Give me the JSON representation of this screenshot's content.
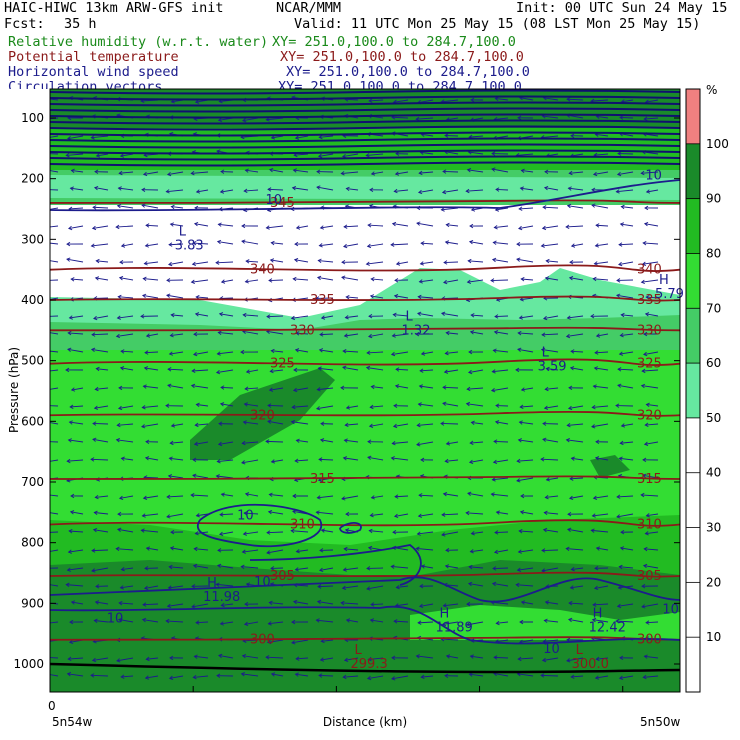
{
  "header": {
    "title_left": "HAIC-HIWC 13km ARW-GFS init",
    "org": "NCAR/MMM",
    "init": "Init: 00 UTC Sun 24 May 15",
    "fcst_label": "Fcst:",
    "fcst_value": "35 h",
    "valid": "Valid: 11 UTC Mon 25 May 15 (08 LST Mon 25 May 15)",
    "fields": [
      {
        "name": "Relative humidity (w.r.t. water)",
        "xy": "XY= 251.0,100.0 to 284.7,100.0",
        "color": "#1a8a1a"
      },
      {
        "name": "Potential temperature",
        "xy": "XY= 251.0,100.0 to 284.7,100.0",
        "color": "#8b1a1a"
      },
      {
        "name": "Horizontal wind speed",
        "xy": "XY= 251.0,100.0 to 284.7,100.0",
        "color": "#1c1c8c"
      },
      {
        "name": "Circulation vectors",
        "xy": "XY= 251.0,100.0 to 284.7,100.0",
        "color": "#1c1c8c"
      }
    ]
  },
  "chart_data": {
    "type": "heatmap",
    "subtype": "vertical cross-section",
    "xlabel": "Distance (km)",
    "ylabel": "Pressure (hPa)",
    "x_tick_zero": "0",
    "x_start_label": "5n54w",
    "x_end_label": "5n50w",
    "y_ticks": [
      100,
      200,
      300,
      400,
      500,
      600,
      700,
      800,
      900,
      1000
    ],
    "ylim": [
      1050,
      50
    ],
    "colorbar": {
      "unit": "%",
      "ticks": [
        10,
        20,
        30,
        40,
        50,
        60,
        70,
        80,
        90,
        100
      ],
      "bands": [
        {
          "from": 50,
          "to": 60,
          "color": "#66e8a0"
        },
        {
          "from": 60,
          "to": 70,
          "color": "#44cc66"
        },
        {
          "from": 70,
          "to": 80,
          "color": "#33dd33"
        },
        {
          "from": 80,
          "to": 90,
          "color": "#22bb22"
        },
        {
          "from": 90,
          "to": 100,
          "color": "#1a8a2a"
        },
        {
          "from": 100,
          "to": 110,
          "color": "#f08080"
        }
      ]
    },
    "theta_contours": [
      {
        "label": "300",
        "p": 960
      },
      {
        "label": "305",
        "p": 855
      },
      {
        "label": "310",
        "p": 770
      },
      {
        "label": "315",
        "p": 695
      },
      {
        "label": "320",
        "p": 590
      },
      {
        "label": "325",
        "p": 505
      },
      {
        "label": "330",
        "p": 450
      },
      {
        "label": "335",
        "p": 400
      },
      {
        "label": "340",
        "p": 350
      },
      {
        "label": "345",
        "p": 240
      }
    ],
    "extrema": [
      {
        "type": "L",
        "value": "3.83",
        "x": 0.22,
        "p": 300,
        "color": "#1c1c8c"
      },
      {
        "type": "L",
        "value": "1.32",
        "x": 0.62,
        "p": 440,
        "color": "#1c1c8c"
      },
      {
        "type": "L",
        "value": "3.59",
        "x": 0.86,
        "p": 500,
        "color": "#1c1c8c"
      },
      {
        "type": "H",
        "value": "5.79",
        "x": 1.07,
        "p": 380,
        "color": "#1c1c8c"
      },
      {
        "type": "H",
        "value": "11.98",
        "x": 0.27,
        "p": 880,
        "color": "#1c1c8c"
      },
      {
        "type": "H",
        "value": "11.89",
        "x": 0.68,
        "p": 930,
        "color": "#1c1c8c"
      },
      {
        "type": "H",
        "value": "12.42",
        "x": 0.95,
        "p": 930,
        "color": "#1c1c8c"
      },
      {
        "type": "L",
        "value": "299.3",
        "x": 0.53,
        "p": 990,
        "color": "#8b1a1a"
      },
      {
        "type": "L",
        "value": "300.0",
        "x": 0.92,
        "p": 990,
        "color": "#8b1a1a"
      }
    ],
    "wind_labels": [
      {
        "value": "10",
        "x": 0.33,
        "p": 755
      },
      {
        "value": "10",
        "x": 0.36,
        "p": 865
      },
      {
        "value": "10",
        "x": 0.1,
        "p": 925
      },
      {
        "value": "10",
        "x": 0.87,
        "p": 975
      },
      {
        "value": "10",
        "x": 1.08,
        "p": 910
      },
      {
        "value": "10",
        "x": 1.05,
        "p": 195
      },
      {
        "value": "10",
        "x": 0.38,
        "p": 235
      }
    ]
  }
}
